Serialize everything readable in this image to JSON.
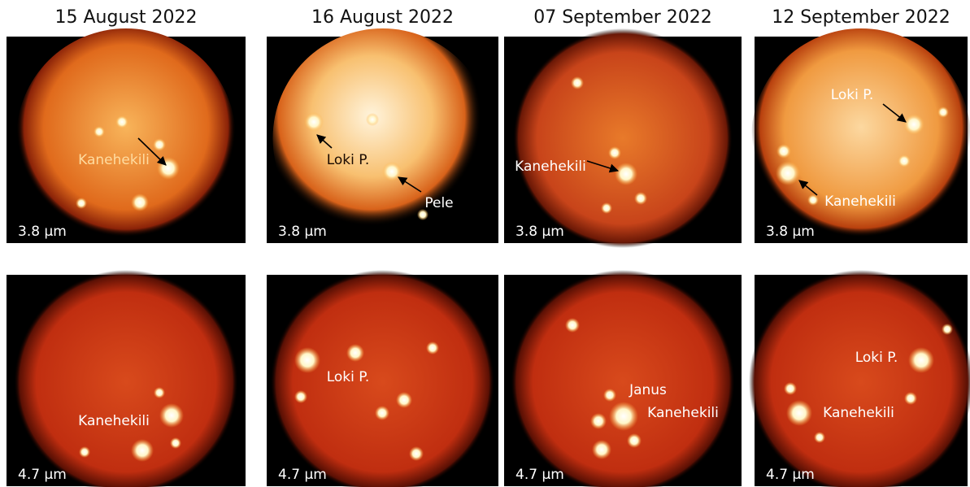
{
  "columns": [
    {
      "date": "15 August 2022",
      "panels": [
        {
          "wavelength": "3.8 μm",
          "labels": [
            "Kanehekili"
          ]
        },
        {
          "wavelength": "4.7 μm",
          "labels": [
            "Kanehekili"
          ]
        }
      ]
    },
    {
      "date": "16 August 2022",
      "panels": [
        {
          "wavelength": "3.8 μm",
          "labels": [
            "Loki P.",
            "Pele"
          ]
        },
        {
          "wavelength": "4.7 μm",
          "labels": [
            "Loki P."
          ]
        }
      ]
    },
    {
      "date": "07 September 2022",
      "panels": [
        {
          "wavelength": "3.8 μm",
          "labels": [
            "Kanehekili"
          ]
        },
        {
          "wavelength": "4.7 μm",
          "labels": [
            "Janus",
            "Kanehekili"
          ]
        }
      ]
    },
    {
      "date": "12 September 2022",
      "panels": [
        {
          "wavelength": "3.8 μm",
          "labels": [
            "Loki P.",
            "Kanehekili"
          ]
        },
        {
          "wavelength": "4.7 μm",
          "labels": [
            "Loki P.",
            "Kanehekili"
          ]
        }
      ]
    }
  ]
}
